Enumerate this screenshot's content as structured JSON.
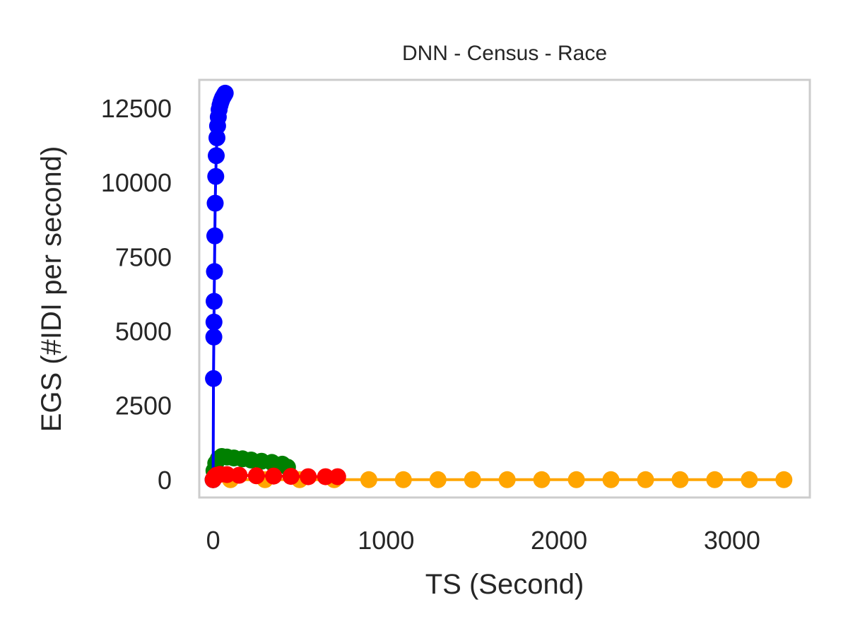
{
  "chart_data": {
    "type": "scatter",
    "title": "DNN - Census - Race",
    "xlabel": "TS (Second)",
    "ylabel": "EGS (#IDI  per second)",
    "xlim": [
      -80,
      3450
    ],
    "ylim": [
      -600,
      13450
    ],
    "xticks": [
      {
        "value": 0,
        "label": "0"
      },
      {
        "value": 1000,
        "label": "1000"
      },
      {
        "value": 2000,
        "label": "2000"
      },
      {
        "value": 3000,
        "label": "3000"
      }
    ],
    "yticks": [
      {
        "value": 0,
        "label": "0"
      },
      {
        "value": 2500,
        "label": "2500"
      },
      {
        "value": 5000,
        "label": "5000"
      },
      {
        "value": 7500,
        "label": "7500"
      },
      {
        "value": 10000,
        "label": "10000"
      },
      {
        "value": 12500,
        "label": "12500"
      }
    ],
    "grid": false,
    "legend": "none",
    "series": [
      {
        "color": "#ffa500",
        "x": [
          0,
          100,
          300,
          500,
          700,
          900,
          1100,
          1300,
          1500,
          1700,
          1900,
          2100,
          2300,
          2500,
          2700,
          2900,
          3100,
          3300
        ],
        "y": [
          0,
          0,
          0,
          0,
          0,
          0,
          0,
          0,
          0,
          0,
          0,
          0,
          0,
          0,
          0,
          0,
          0,
          0
        ]
      },
      {
        "color": "#008000",
        "x": [
          0,
          5,
          15,
          30,
          50,
          80,
          120,
          170,
          220,
          280,
          340,
          400,
          430
        ],
        "y": [
          0,
          300,
          550,
          700,
          780,
          760,
          730,
          700,
          660,
          620,
          580,
          520,
          420
        ]
      },
      {
        "color": "#0000ff",
        "x": [
          0,
          2,
          4,
          5,
          6,
          8,
          10,
          12,
          15,
          18,
          22,
          26,
          30,
          35,
          40,
          45,
          50,
          55,
          60,
          65,
          70
        ],
        "y": [
          0,
          3400,
          4800,
          5300,
          6000,
          7000,
          8200,
          9300,
          10200,
          10900,
          11500,
          11900,
          12200,
          12450,
          12600,
          12700,
          12780,
          12850,
          12900,
          12950,
          13000
        ]
      },
      {
        "color": "#ff0000",
        "x": [
          0,
          5,
          10,
          20,
          40,
          80,
          150,
          250,
          350,
          450,
          550,
          650,
          720
        ],
        "y": [
          0,
          50,
          100,
          150,
          180,
          170,
          150,
          130,
          120,
          110,
          100,
          100,
          100
        ]
      }
    ]
  }
}
